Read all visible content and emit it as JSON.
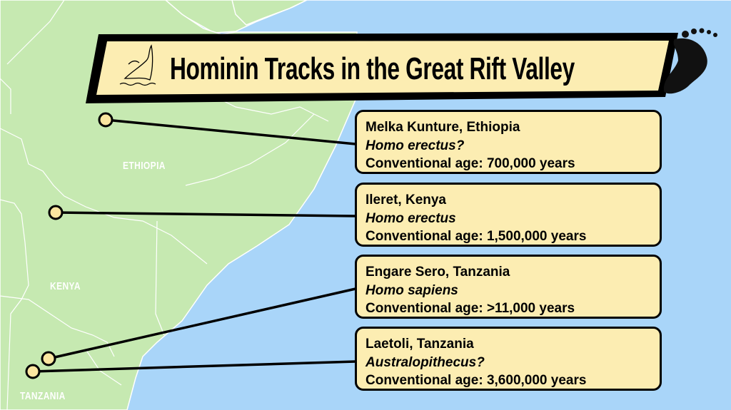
{
  "title": "Hominin Tracks in the Great Rift Valley",
  "colors": {
    "land": "#c6e9b1",
    "sea": "#a9d5f9",
    "box": "#fcedb2",
    "border": "#000000"
  },
  "icons": [
    "hand-logo-icon",
    "footprint-icon"
  ],
  "countries": [
    "ETHIOPIA",
    "KENYA",
    "TANZANIA"
  ],
  "sites": [
    {
      "name": "Melka Kunture, Ethiopia",
      "species": "Homo erectus?",
      "age": "Conventional age: 700,000 years"
    },
    {
      "name": "Ileret, Kenya",
      "species": "Homo erectus",
      "age": "Conventional age: 1,500,000 years"
    },
    {
      "name": "Engare Sero, Tanzania",
      "species": "Homo sapiens",
      "age": "Conventional age: >11,000 years"
    },
    {
      "name": "Laetoli, Tanzania",
      "species": "Australopithecus?",
      "age": "Conventional age: 3,600,000 years"
    }
  ]
}
